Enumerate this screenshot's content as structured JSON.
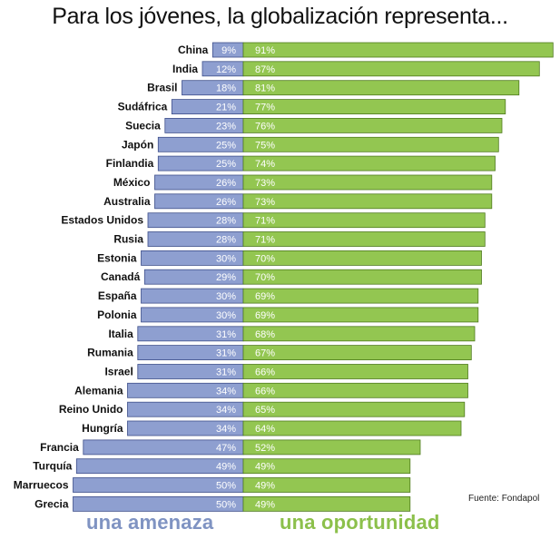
{
  "title": "Para los jóvenes, la globalización representa...",
  "source": "Fuente: Fondapol",
  "colors": {
    "threat": "#8e9fd0",
    "threat_border": "#3e4f8a",
    "opportunity": "#93c651",
    "opportunity_border": "#4f7a1e",
    "legend_threat": "#7f93c2",
    "legend_opportunity": "#8cc04b"
  },
  "chart_data": {
    "type": "bar",
    "orientation": "horizontal-diverging",
    "categories": [
      "China",
      "India",
      "Brasil",
      "Sudáfrica",
      "Suecia",
      "Japón",
      "Finlandia",
      "México",
      "Australia",
      "Estados Unidos",
      "Rusia",
      "Estonia",
      "Canadá",
      "España",
      "Polonia",
      "Italia",
      "Rumania",
      "Israel",
      "Alemania",
      "Reino Unido",
      "Hungría",
      "Francia",
      "Turquía",
      "Marruecos",
      "Grecia"
    ],
    "series": [
      {
        "name": "una amenaza",
        "values": [
          9,
          12,
          18,
          21,
          23,
          25,
          25,
          26,
          26,
          28,
          28,
          30,
          29,
          30,
          30,
          31,
          31,
          31,
          34,
          34,
          34,
          47,
          49,
          50,
          50
        ],
        "labels": [
          "9%",
          "12%",
          "18%",
          "21%",
          "23%",
          "25%",
          "25%",
          "26%",
          "26%",
          "28%",
          "28%",
          "30%",
          "29%",
          "30%",
          "30%",
          "31%",
          "31%",
          "31%",
          "34%",
          "34%",
          "34%",
          "47%",
          "49%",
          "50%",
          "50%"
        ]
      },
      {
        "name": "una oportunidad",
        "values": [
          91,
          87,
          81,
          77,
          76,
          75,
          74,
          73,
          73,
          71,
          71,
          70,
          70,
          69,
          69,
          68,
          67,
          66,
          66,
          65,
          64,
          52,
          49,
          49,
          49
        ],
        "labels": [
          "91%",
          "87%",
          "81%",
          "77%",
          "76%",
          "75%",
          "74%",
          "73%",
          "73%",
          "71%",
          "71%",
          "70%",
          "70%",
          "69%",
          "69%",
          "68%",
          "67%",
          "66%",
          "66%",
          "65%",
          "64%",
          "52%",
          "49%",
          "49%",
          "49%"
        ]
      }
    ]
  }
}
